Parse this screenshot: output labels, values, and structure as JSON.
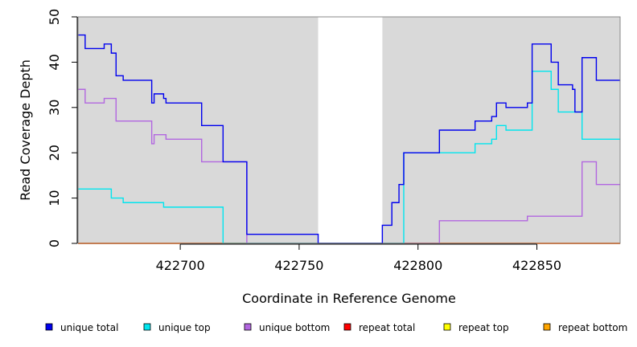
{
  "chart_data": {
    "type": "line",
    "title": "",
    "xlabel": "Coordinate in Reference Genome",
    "ylabel": "Read Coverage Depth",
    "xlim": [
      422657,
      422885
    ],
    "ylim": [
      0,
      50
    ],
    "xticks": [
      422700,
      422750,
      422800,
      422850
    ],
    "yticks": [
      0,
      10,
      20,
      30,
      40,
      50
    ],
    "grid": false,
    "legend_position": "bottom",
    "shaded_regions": [
      {
        "x": [
          422657,
          422758
        ],
        "color": "#d9d9d9"
      },
      {
        "x": [
          422785,
          422885
        ],
        "color": "#d9d9d9"
      }
    ],
    "series": [
      {
        "name": "unique total",
        "color": "#0000ee",
        "step": true,
        "x": [
          422657,
          422660,
          422668,
          422671,
          422673,
          422676,
          422688,
          422689,
          422693,
          422694,
          422700,
          422709,
          422718,
          422728,
          422758,
          422785,
          422789,
          422792,
          422794,
          422809,
          422824,
          422831,
          422833,
          422837,
          422846,
          422848,
          422856,
          422859,
          422865,
          422866,
          422869,
          422875,
          422885
        ],
        "y": [
          46,
          43,
          44,
          42,
          37,
          36,
          31,
          33,
          32,
          31,
          31,
          26,
          18,
          2,
          0,
          4,
          9,
          13,
          20,
          25,
          27,
          28,
          31,
          30,
          31,
          44,
          40,
          35,
          34,
          29,
          41,
          36,
          36
        ]
      },
      {
        "name": "unique top",
        "color": "#00e5ee",
        "step": true,
        "x": [
          422657,
          422671,
          422676,
          422693,
          422709,
          422718,
          422758,
          422785,
          422794,
          422809,
          422824,
          422831,
          422833,
          422837,
          422846,
          422848,
          422856,
          422859,
          422865,
          422866,
          422869,
          422875,
          422885
        ],
        "y": [
          12,
          10,
          9,
          8,
          8,
          0,
          0,
          0,
          20,
          20,
          22,
          23,
          26,
          25,
          25,
          38,
          34,
          29,
          29,
          29,
          23,
          23,
          23
        ]
      },
      {
        "name": "unique bottom",
        "color": "#b266e0",
        "step": true,
        "x": [
          422657,
          422660,
          422668,
          422673,
          422688,
          422689,
          422694,
          422709,
          422718,
          422728,
          422758,
          422785,
          422809,
          422837,
          422846,
          422869,
          422875,
          422885
        ],
        "y": [
          34,
          31,
          32,
          27,
          22,
          24,
          23,
          18,
          18,
          0,
          0,
          0,
          5,
          5,
          6,
          18,
          13,
          13
        ]
      },
      {
        "name": "repeat total",
        "color": "#ff0000",
        "step": true,
        "x": [
          422657,
          422885
        ],
        "y": [
          0,
          0
        ]
      },
      {
        "name": "repeat top",
        "color": "#ffff00",
        "step": true,
        "x": [
          422657,
          422885
        ],
        "y": [
          0,
          0
        ]
      },
      {
        "name": "repeat bottom",
        "color": "#ffa500",
        "step": true,
        "x": [
          422657,
          422885
        ],
        "y": [
          0,
          0
        ]
      }
    ]
  }
}
